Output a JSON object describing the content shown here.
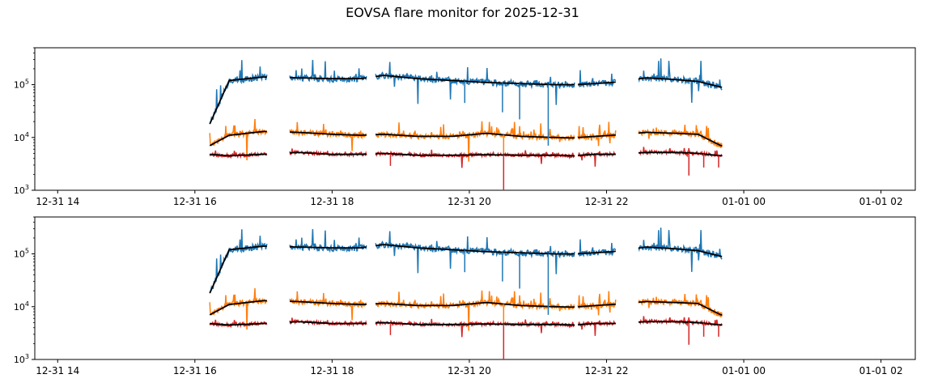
{
  "figure": {
    "title": "EOVSA flare monitor for 2025-12-31"
  },
  "chart_data": [
    {
      "type": "line",
      "title": "",
      "xlabel": "",
      "ylabel": "",
      "yscale": "log",
      "ylim": [
        1000,
        500000
      ],
      "xlim": [
        "2025-12-31 13:40",
        "2026-01-01 02:30"
      ],
      "x_ticks": [
        "12-31 14",
        "12-31 16",
        "12-31 18",
        "12-31 20",
        "12-31 22",
        "01-01 00",
        "01-01 02"
      ],
      "y_ticks": [
        "10^3",
        "10^4",
        "10^5"
      ],
      "grid": false,
      "legend": "none",
      "data_segments": [
        [
          "2025-12-31 16:13",
          "2025-12-31 17:03"
        ],
        [
          "2025-12-31 17:23",
          "2025-12-31 18:30"
        ],
        [
          "2025-12-31 18:38",
          "2025-12-31 21:32"
        ],
        [
          "2025-12-31 21:35",
          "2025-12-31 22:08"
        ],
        [
          "2025-12-31 22:28",
          "2025-12-31 23:41"
        ]
      ],
      "series": [
        {
          "color": "#1f77b4",
          "x": [
            "2025-12-31 16:13",
            "2025-12-31 16:30",
            "2025-12-31 17:00",
            "2025-12-31 17:30",
            "2025-12-31 18:00",
            "2025-12-31 18:25",
            "2025-12-31 18:45",
            "2025-12-31 19:15",
            "2025-12-31 19:45",
            "2025-12-31 20:15",
            "2025-12-31 20:45",
            "2025-12-31 21:15",
            "2025-12-31 21:30",
            "2025-12-31 21:50",
            "2025-12-31 22:05",
            "2025-12-31 22:35",
            "2025-12-31 23:00",
            "2025-12-31 23:20",
            "2025-12-31 23:40"
          ],
          "values": [
            18000,
            120000,
            140000,
            135000,
            130000,
            130000,
            150000,
            130000,
            120000,
            110000,
            105000,
            100000,
            100000,
            105000,
            110000,
            135000,
            125000,
            115000,
            90000
          ]
        },
        {
          "color": "#ff7f0e",
          "x": [
            "2025-12-31 16:13",
            "2025-12-31 16:30",
            "2025-12-31 17:00",
            "2025-12-31 17:30",
            "2025-12-31 18:00",
            "2025-12-31 18:25",
            "2025-12-31 18:45",
            "2025-12-31 19:15",
            "2025-12-31 19:45",
            "2025-12-31 20:15",
            "2025-12-31 20:45",
            "2025-12-31 21:15",
            "2025-12-31 21:30",
            "2025-12-31 21:50",
            "2025-12-31 22:05",
            "2025-12-31 22:35",
            "2025-12-31 23:00",
            "2025-12-31 23:20",
            "2025-12-31 23:40"
          ],
          "values": [
            7000,
            11000,
            13000,
            12500,
            11500,
            11000,
            11500,
            10500,
            10500,
            12000,
            10500,
            10000,
            9800,
            10500,
            11000,
            12500,
            12000,
            11500,
            7000
          ]
        },
        {
          "color": "#d62728",
          "x": [
            "2025-12-31 16:13",
            "2025-12-31 16:30",
            "2025-12-31 17:00",
            "2025-12-31 17:30",
            "2025-12-31 18:00",
            "2025-12-31 18:25",
            "2025-12-31 18:45",
            "2025-12-31 19:15",
            "2025-12-31 19:45",
            "2025-12-31 20:15",
            "2025-12-31 20:45",
            "2025-12-31 21:15",
            "2025-12-31 21:30",
            "2025-12-31 21:50",
            "2025-12-31 22:05",
            "2025-12-31 22:35",
            "2025-12-31 23:00",
            "2025-12-31 23:20",
            "2025-12-31 23:40"
          ],
          "values": [
            4800,
            4500,
            4800,
            5200,
            4800,
            4800,
            5000,
            4600,
            4600,
            4700,
            4600,
            4600,
            4500,
            4800,
            4800,
            5200,
            5200,
            5000,
            4500
          ]
        }
      ]
    },
    {
      "type": "line",
      "title": "",
      "xlabel": "",
      "ylabel": "",
      "yscale": "log",
      "ylim": [
        1000,
        500000
      ],
      "xlim": [
        "2025-12-31 13:40",
        "2026-01-01 02:30"
      ],
      "x_ticks": [
        "12-31 14",
        "12-31 16",
        "12-31 18",
        "12-31 20",
        "12-31 22",
        "01-01 00",
        "01-01 02"
      ],
      "y_ticks": [
        "10^3",
        "10^4",
        "10^5"
      ],
      "grid": false,
      "legend": "none",
      "data_segments": [
        [
          "2025-12-31 16:13",
          "2025-12-31 17:03"
        ],
        [
          "2025-12-31 17:23",
          "2025-12-31 18:30"
        ],
        [
          "2025-12-31 18:38",
          "2025-12-31 21:32"
        ],
        [
          "2025-12-31 21:35",
          "2025-12-31 22:08"
        ],
        [
          "2025-12-31 22:28",
          "2025-12-31 23:41"
        ]
      ],
      "series": [
        {
          "color": "#1f77b4",
          "x": [
            "2025-12-31 16:13",
            "2025-12-31 16:30",
            "2025-12-31 17:00",
            "2025-12-31 17:30",
            "2025-12-31 18:00",
            "2025-12-31 18:25",
            "2025-12-31 18:45",
            "2025-12-31 19:15",
            "2025-12-31 19:45",
            "2025-12-31 20:15",
            "2025-12-31 20:45",
            "2025-12-31 21:15",
            "2025-12-31 21:30",
            "2025-12-31 21:50",
            "2025-12-31 22:05",
            "2025-12-31 22:35",
            "2025-12-31 23:00",
            "2025-12-31 23:20",
            "2025-12-31 23:40"
          ],
          "values": [
            18000,
            120000,
            140000,
            135000,
            130000,
            130000,
            150000,
            130000,
            120000,
            110000,
            105000,
            100000,
            100000,
            105000,
            110000,
            135000,
            125000,
            115000,
            90000
          ]
        },
        {
          "color": "#ff7f0e",
          "x": [
            "2025-12-31 16:13",
            "2025-12-31 16:30",
            "2025-12-31 17:00",
            "2025-12-31 17:30",
            "2025-12-31 18:00",
            "2025-12-31 18:25",
            "2025-12-31 18:45",
            "2025-12-31 19:15",
            "2025-12-31 19:45",
            "2025-12-31 20:15",
            "2025-12-31 20:45",
            "2025-12-31 21:15",
            "2025-12-31 21:30",
            "2025-12-31 21:50",
            "2025-12-31 22:05",
            "2025-12-31 22:35",
            "2025-12-31 23:00",
            "2025-12-31 23:20",
            "2025-12-31 23:40"
          ],
          "values": [
            7000,
            11000,
            13000,
            12500,
            11500,
            11000,
            11500,
            10500,
            10500,
            12000,
            10500,
            10000,
            9800,
            10500,
            11000,
            12500,
            12000,
            11500,
            7000
          ]
        },
        {
          "color": "#d62728",
          "x": [
            "2025-12-31 16:13",
            "2025-12-31 16:30",
            "2025-12-31 17:00",
            "2025-12-31 17:30",
            "2025-12-31 18:00",
            "2025-12-31 18:25",
            "2025-12-31 18:45",
            "2025-12-31 19:15",
            "2025-12-31 19:45",
            "2025-12-31 20:15",
            "2025-12-31 20:45",
            "2025-12-31 21:15",
            "2025-12-31 21:30",
            "2025-12-31 21:50",
            "2025-12-31 22:05",
            "2025-12-31 22:35",
            "2025-12-31 23:00",
            "2025-12-31 23:20",
            "2025-12-31 23:40"
          ],
          "values": [
            4800,
            4500,
            4800,
            5200,
            4800,
            4800,
            5000,
            4600,
            4600,
            4700,
            4600,
            4600,
            4500,
            4800,
            4800,
            5200,
            5200,
            5000,
            4500
          ]
        }
      ]
    }
  ]
}
